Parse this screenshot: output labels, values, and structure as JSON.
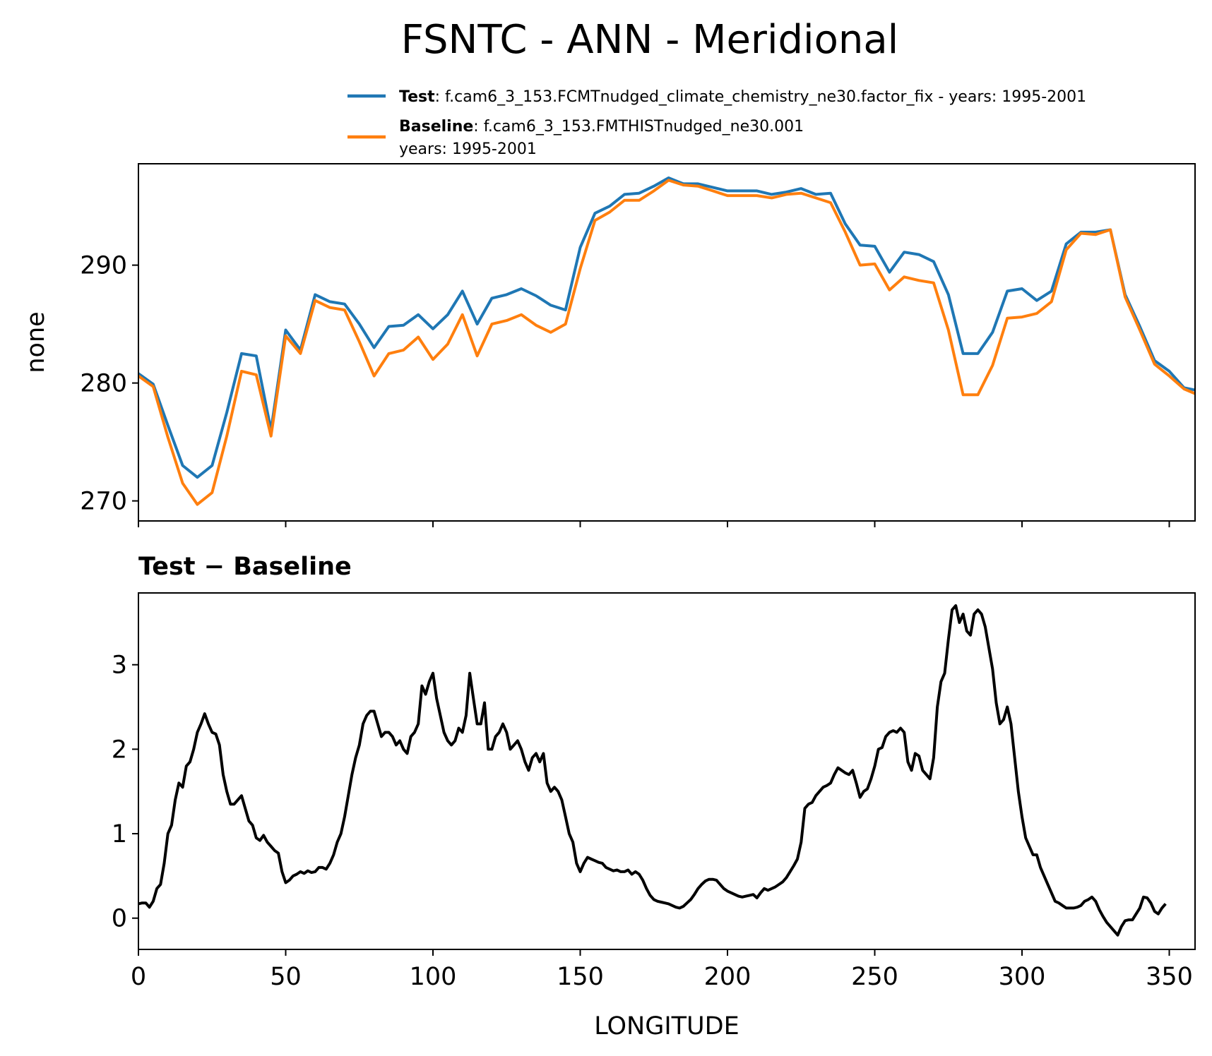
{
  "figure": {
    "title": "FSNTC - ANN - Meridional",
    "legend": [
      {
        "bold": "Test",
        "text": ": f.cam6_3_153.FCMTnudged_climate_chemistry_ne30.factor_fix - years: 1995-2001",
        "line2": "",
        "color": "#1f77b4"
      },
      {
        "bold": "Baseline",
        "text": ": f.cam6_3_153.FMTHISTnudged_ne30.001",
        "line2": "years: 1995-2001",
        "color": "#ff7f0e"
      }
    ],
    "diff_title": "Test − Baseline",
    "xlabel": "LONGITUDE",
    "ylabel_top": "none",
    "xticks": [
      "0",
      "50",
      "100",
      "150",
      "200",
      "250",
      "300",
      "350"
    ],
    "yticks_top": [
      "270",
      "280",
      "290"
    ],
    "yticks_bottom": [
      "0",
      "1",
      "2",
      "3"
    ]
  },
  "chart_data": [
    {
      "type": "line",
      "xlim": [
        0,
        358.75
      ],
      "ylim": [
        268.3,
        298.6
      ],
      "ylabel": "none",
      "x_step": 1.25,
      "series": [
        {
          "name": "Test",
          "color": "#1f77b4",
          "x": [
            0,
            5,
            10,
            15,
            20,
            25,
            30,
            35,
            40,
            45,
            50,
            55,
            60,
            65,
            70,
            75,
            80,
            85,
            90,
            95,
            100,
            105,
            110,
            115,
            120,
            125,
            130,
            135,
            140,
            145,
            150,
            155,
            160,
            165,
            170,
            175,
            180,
            185,
            190,
            195,
            200,
            205,
            210,
            215,
            220,
            225,
            230,
            235,
            240,
            245,
            250,
            255,
            260,
            265,
            270,
            275,
            280,
            285,
            290,
            295,
            300,
            305,
            310,
            315,
            320,
            325,
            330,
            335,
            340,
            345,
            350,
            355,
            358.75
          ],
          "values": [
            280.8,
            279.9,
            276.4,
            273.0,
            272.0,
            273.0,
            277.5,
            282.5,
            282.3,
            276.0,
            284.5,
            282.8,
            287.5,
            286.9,
            286.7,
            285.0,
            283.0,
            284.8,
            284.9,
            285.8,
            284.6,
            285.8,
            287.8,
            285.0,
            287.2,
            287.5,
            288.0,
            287.4,
            286.6,
            286.2,
            291.5,
            294.4,
            295.0,
            296.0,
            296.1,
            296.7,
            297.4,
            296.9,
            296.9,
            296.6,
            296.3,
            296.3,
            296.3,
            296.0,
            296.2,
            296.5,
            296.0,
            296.1,
            293.5,
            291.7,
            291.6,
            289.4,
            291.1,
            290.9,
            290.3,
            287.5,
            282.5,
            282.5,
            284.3,
            287.8,
            288.0,
            287.0,
            287.8,
            291.8,
            292.8,
            292.8,
            293.0,
            287.5,
            284.8,
            281.9,
            281.0,
            279.6,
            279.4
          ]
        },
        {
          "name": "Baseline",
          "color": "#ff7f0e",
          "x": [
            0,
            5,
            10,
            15,
            20,
            25,
            30,
            35,
            40,
            45,
            50,
            55,
            60,
            65,
            70,
            75,
            80,
            85,
            90,
            95,
            100,
            105,
            110,
            115,
            120,
            125,
            130,
            135,
            140,
            145,
            150,
            155,
            160,
            165,
            170,
            175,
            180,
            185,
            190,
            195,
            200,
            205,
            210,
            215,
            220,
            225,
            230,
            235,
            240,
            245,
            250,
            255,
            260,
            265,
            270,
            275,
            280,
            285,
            290,
            295,
            300,
            305,
            310,
            315,
            320,
            325,
            330,
            335,
            340,
            345,
            350,
            355,
            358.75
          ],
          "values": [
            280.6,
            279.7,
            275.4,
            271.5,
            269.7,
            270.7,
            275.5,
            281.0,
            280.7,
            275.5,
            284.0,
            282.5,
            287.0,
            286.4,
            286.2,
            283.5,
            280.6,
            282.5,
            282.8,
            283.9,
            282.0,
            283.3,
            285.8,
            282.3,
            285.0,
            285.3,
            285.8,
            284.9,
            284.3,
            285.0,
            289.7,
            293.8,
            294.5,
            295.5,
            295.5,
            296.3,
            297.2,
            296.8,
            296.7,
            296.3,
            295.9,
            295.9,
            295.9,
            295.7,
            296.0,
            296.1,
            295.7,
            295.3,
            292.8,
            290.0,
            290.1,
            287.9,
            289.0,
            288.7,
            288.5,
            284.5,
            279.0,
            279.0,
            281.5,
            285.5,
            285.6,
            285.9,
            286.9,
            291.3,
            292.7,
            292.6,
            293.0,
            287.3,
            284.5,
            281.6,
            280.6,
            279.5,
            279.1
          ]
        }
      ]
    },
    {
      "type": "line",
      "title": "Test − Baseline",
      "xlabel": "LONGITUDE",
      "xlim": [
        0,
        358.75
      ],
      "ylim": [
        -0.37,
        3.85
      ],
      "x_step": 1.25,
      "series": [
        {
          "color": "#000000",
          "values": [
            0.17,
            0.18,
            0.18,
            0.13,
            0.2,
            0.35,
            0.4,
            0.65,
            1.0,
            1.1,
            1.4,
            1.6,
            1.55,
            1.8,
            1.85,
            2.0,
            2.2,
            2.3,
            2.42,
            2.3,
            2.2,
            2.18,
            2.05,
            1.7,
            1.5,
            1.35,
            1.35,
            1.4,
            1.45,
            1.3,
            1.15,
            1.1,
            0.95,
            0.92,
            0.98,
            0.9,
            0.85,
            0.8,
            0.77,
            0.55,
            0.42,
            0.45,
            0.5,
            0.52,
            0.55,
            0.53,
            0.56,
            0.54,
            0.55,
            0.6,
            0.6,
            0.58,
            0.65,
            0.75,
            0.9,
            1.0,
            1.2,
            1.45,
            1.7,
            1.9,
            2.05,
            2.3,
            2.4,
            2.45,
            2.45,
            2.3,
            2.15,
            2.2,
            2.2,
            2.15,
            2.05,
            2.1,
            2.0,
            1.95,
            2.15,
            2.2,
            2.3,
            2.75,
            2.65,
            2.8,
            2.9,
            2.6,
            2.4,
            2.2,
            2.1,
            2.05,
            2.1,
            2.25,
            2.2,
            2.4,
            2.9,
            2.6,
            2.3,
            2.3,
            2.55,
            2.0,
            2.0,
            2.15,
            2.2,
            2.3,
            2.2,
            2.0,
            2.05,
            2.1,
            2.0,
            1.85,
            1.75,
            1.9,
            1.95,
            1.85,
            1.95,
            1.6,
            1.5,
            1.55,
            1.5,
            1.4,
            1.2,
            1.0,
            0.9,
            0.65,
            0.55,
            0.65,
            0.72,
            0.7,
            0.68,
            0.66,
            0.65,
            0.6,
            0.58,
            0.56,
            0.57,
            0.55,
            0.55,
            0.57,
            0.52,
            0.55,
            0.52,
            0.45,
            0.35,
            0.27,
            0.22,
            0.2,
            0.19,
            0.18,
            0.17,
            0.15,
            0.13,
            0.12,
            0.14,
            0.18,
            0.22,
            0.28,
            0.35,
            0.4,
            0.44,
            0.46,
            0.46,
            0.45,
            0.4,
            0.35,
            0.32,
            0.3,
            0.28,
            0.26,
            0.25,
            0.26,
            0.27,
            0.28,
            0.24,
            0.3,
            0.35,
            0.33,
            0.35,
            0.37,
            0.4,
            0.43,
            0.48,
            0.55,
            0.62,
            0.7,
            0.9,
            1.3,
            1.35,
            1.37,
            1.45,
            1.5,
            1.55,
            1.57,
            1.6,
            1.7,
            1.78,
            1.75,
            1.72,
            1.7,
            1.75,
            1.6,
            1.43,
            1.5,
            1.53,
            1.65,
            1.8,
            2.0,
            2.02,
            2.15,
            2.2,
            2.22,
            2.2,
            2.25,
            2.2,
            1.85,
            1.75,
            1.95,
            1.92,
            1.75,
            1.7,
            1.65,
            1.9,
            2.5,
            2.8,
            2.9,
            3.3,
            3.65,
            3.7,
            3.5,
            3.6,
            3.4,
            3.35,
            3.6,
            3.65,
            3.6,
            3.45,
            3.2,
            2.95,
            2.55,
            2.3,
            2.35,
            2.5,
            2.3,
            1.9,
            1.5,
            1.2,
            0.95,
            0.85,
            0.75,
            0.75,
            0.6,
            0.5,
            0.4,
            0.3,
            0.2,
            0.18,
            0.15,
            0.12,
            0.12,
            0.12,
            0.13,
            0.15,
            0.2,
            0.22,
            0.25,
            0.2,
            0.1,
            0.02,
            -0.05,
            -0.1,
            -0.15,
            -0.2,
            -0.1,
            -0.03,
            -0.02,
            -0.02,
            0.05,
            0.12,
            0.25,
            0.24,
            0.18,
            0.08,
            0.05,
            0.12,
            0.17
          ]
        }
      ]
    }
  ]
}
